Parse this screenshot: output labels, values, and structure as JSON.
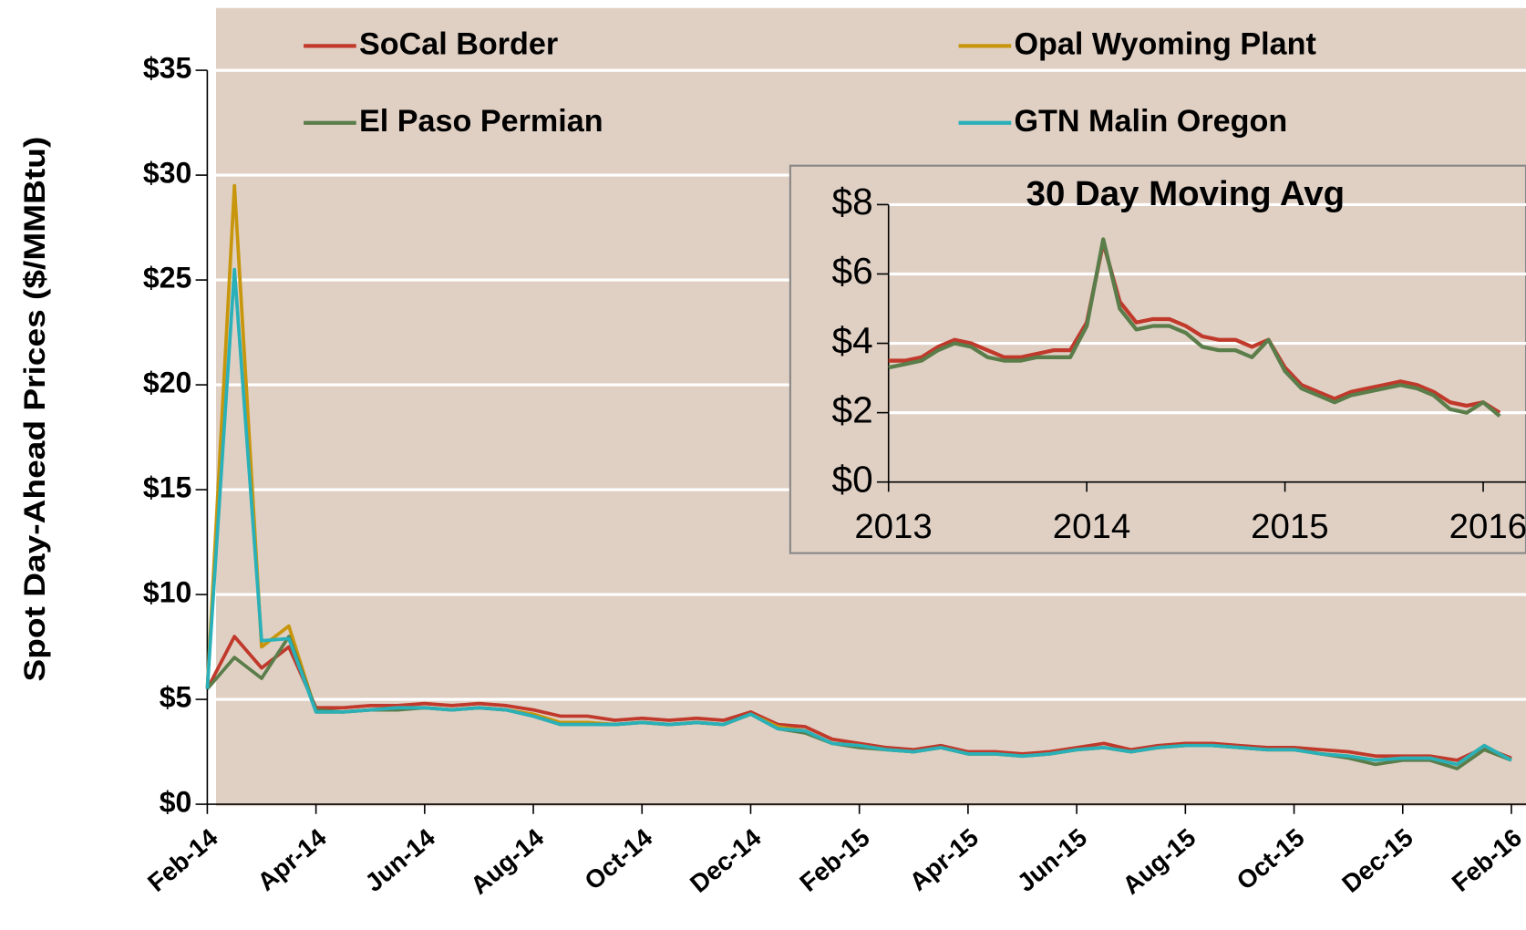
{
  "chart_data": [
    {
      "type": "line",
      "y_label": "Spot Day-Ahead Prices ($/MMBtu)",
      "legend": "top",
      "grid": true,
      "background": "#e0d0c4",
      "categories": [
        "Feb-14",
        null,
        null,
        null,
        "Apr-14",
        null,
        null,
        null,
        "Jun-14",
        null,
        null,
        null,
        "Aug-14",
        null,
        null,
        null,
        "Oct-14",
        null,
        null,
        null,
        "Dec-14",
        null,
        null,
        null,
        "Feb-15",
        null,
        null,
        null,
        "Apr-15",
        null,
        null,
        null,
        "Jun-15",
        null,
        null,
        null,
        "Aug-15",
        null,
        null,
        null,
        "Oct-15",
        null,
        null,
        null,
        "Dec-15",
        null,
        null,
        null,
        "Feb-16"
      ],
      "ylim": [
        0,
        35
      ],
      "yticks": [
        {
          "value": 0,
          "label": "$0"
        },
        {
          "value": 5,
          "label": "$5"
        },
        {
          "value": 10,
          "label": "$10"
        },
        {
          "value": 15,
          "label": "$15"
        },
        {
          "value": 20,
          "label": "$20"
        },
        {
          "value": 25,
          "label": "$25"
        },
        {
          "value": 30,
          "label": "$30"
        },
        {
          "value": 35,
          "label": "$35"
        }
      ],
      "series": [
        {
          "name": "SoCal Border",
          "color": "#c0392b",
          "values": [
            5.5,
            8.0,
            6.5,
            7.5,
            4.6,
            4.6,
            4.7,
            4.7,
            4.8,
            4.7,
            4.8,
            4.7,
            4.5,
            4.2,
            4.2,
            4.0,
            4.1,
            4.0,
            4.1,
            4.0,
            4.4,
            3.8,
            3.7,
            3.1,
            2.9,
            2.7,
            2.6,
            2.8,
            2.5,
            2.5,
            2.4,
            2.5,
            2.7,
            2.9,
            2.6,
            2.8,
            2.9,
            2.9,
            2.8,
            2.7,
            2.7,
            2.6,
            2.5,
            2.3,
            2.3,
            2.3,
            2.1,
            2.7,
            2.2
          ]
        },
        {
          "name": "Opal Wyoming Plant",
          "color": "#c8960c",
          "values": [
            5.5,
            29.5,
            7.5,
            8.5,
            4.4,
            4.4,
            4.5,
            4.6,
            4.6,
            4.5,
            4.6,
            4.5,
            4.3,
            3.9,
            3.9,
            3.8,
            3.9,
            3.8,
            3.9,
            3.8,
            4.3,
            3.7,
            3.5,
            2.9,
            2.8,
            2.6,
            2.5,
            2.7,
            2.4,
            2.4,
            2.3,
            2.4,
            2.6,
            2.7,
            2.5,
            2.7,
            2.8,
            2.8,
            2.7,
            2.6,
            2.6,
            2.4,
            2.3,
            2.1,
            2.2,
            2.2,
            1.9,
            2.8,
            2.1
          ]
        },
        {
          "name": "El Paso Permian",
          "color": "#5a7d4a",
          "values": [
            5.5,
            7.0,
            6.0,
            8.0,
            4.5,
            4.4,
            4.5,
            4.5,
            4.6,
            4.5,
            4.6,
            4.5,
            4.2,
            3.8,
            3.8,
            3.8,
            3.9,
            3.8,
            3.9,
            3.8,
            4.3,
            3.6,
            3.4,
            2.9,
            2.7,
            2.6,
            2.5,
            2.7,
            2.4,
            2.4,
            2.3,
            2.4,
            2.6,
            2.7,
            2.5,
            2.7,
            2.8,
            2.8,
            2.7,
            2.6,
            2.6,
            2.4,
            2.2,
            1.9,
            2.1,
            2.1,
            1.7,
            2.6,
            2.1
          ]
        },
        {
          "name": "GTN Malin Oregon",
          "color": "#2ab0b8",
          "values": [
            5.5,
            25.5,
            7.8,
            7.9,
            4.4,
            4.4,
            4.5,
            4.6,
            4.6,
            4.5,
            4.6,
            4.5,
            4.2,
            3.8,
            3.8,
            3.8,
            3.9,
            3.8,
            3.9,
            3.8,
            4.3,
            3.6,
            3.5,
            2.9,
            2.8,
            2.6,
            2.5,
            2.7,
            2.4,
            2.4,
            2.3,
            2.4,
            2.6,
            2.7,
            2.5,
            2.7,
            2.8,
            2.8,
            2.7,
            2.6,
            2.6,
            2.4,
            2.3,
            2.1,
            2.2,
            2.2,
            1.9,
            2.8,
            2.1
          ]
        }
      ]
    },
    {
      "type": "line",
      "title": "30 Day Moving Avg",
      "grid": true,
      "background": "#e0d0c4",
      "categories": [
        "2013",
        null,
        null,
        null,
        null,
        null,
        null,
        null,
        null,
        null,
        null,
        null,
        "2014",
        null,
        null,
        null,
        null,
        null,
        null,
        null,
        null,
        null,
        null,
        null,
        "2015",
        null,
        null,
        null,
        null,
        null,
        null,
        null,
        null,
        null,
        null,
        null,
        "2016",
        null
      ],
      "ylim": [
        0,
        8
      ],
      "yticks": [
        {
          "value": 0,
          "label": "$0"
        },
        {
          "value": 2,
          "label": "$2"
        },
        {
          "value": 4,
          "label": "$4"
        },
        {
          "value": 6,
          "label": "$6"
        },
        {
          "value": 8,
          "label": "$8"
        }
      ],
      "series": [
        {
          "color": "#c0392b",
          "values": [
            3.5,
            3.5,
            3.6,
            3.9,
            4.1,
            4.0,
            3.8,
            3.6,
            3.6,
            3.7,
            3.8,
            3.8,
            4.6,
            6.9,
            5.2,
            4.6,
            4.7,
            4.7,
            4.5,
            4.2,
            4.1,
            4.1,
            3.9,
            4.1,
            3.3,
            2.8,
            2.6,
            2.4,
            2.6,
            2.7,
            2.8,
            2.9,
            2.8,
            2.6,
            2.3,
            2.2,
            2.3,
            2.0
          ]
        },
        {
          "color": "#5a7d4a",
          "values": [
            3.3,
            3.4,
            3.5,
            3.8,
            4.0,
            3.9,
            3.6,
            3.5,
            3.5,
            3.6,
            3.6,
            3.6,
            4.5,
            7.0,
            5.0,
            4.4,
            4.5,
            4.5,
            4.3,
            3.9,
            3.8,
            3.8,
            3.6,
            4.1,
            3.2,
            2.7,
            2.5,
            2.3,
            2.5,
            2.6,
            2.7,
            2.8,
            2.7,
            2.5,
            2.1,
            2.0,
            2.3,
            1.9
          ]
        }
      ]
    }
  ]
}
